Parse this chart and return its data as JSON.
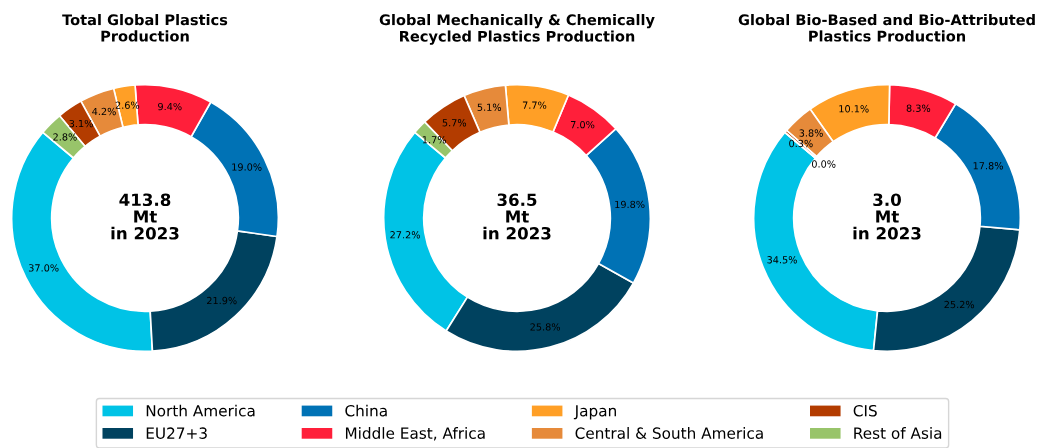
{
  "chart_data": [
    {
      "type": "donut",
      "title": "Total Global Plastics\nProduction",
      "categories": [
        "North America",
        "EU27+3",
        "China",
        "Middle East, Africa",
        "Japan",
        "Central & South America",
        "CIS",
        "Rest of Asia"
      ],
      "values": [
        37.0,
        21.9,
        19.0,
        9.4,
        2.6,
        4.2,
        3.1,
        2.8
      ],
      "value_labels": [
        "37.0%",
        "21.9%",
        "19.0%",
        "9.4%",
        "2.6%",
        "4.2%",
        "3.1%",
        "2.8%"
      ],
      "colors": [
        "#00c3e6",
        "#00425f",
        "#0072b5",
        "#ff1f3a",
        "#ff9f26",
        "#e68a3a",
        "#b33c00",
        "#98c46a"
      ],
      "annotations": [
        "413.8\nMt\nin 2023"
      ],
      "legend": "bottom"
    },
    {
      "type": "donut",
      "title": "Global Mechanically & Chemically\nRecycled Plastics Production",
      "categories": [
        null,
        null,
        null,
        null,
        null,
        null,
        null,
        null
      ],
      "values": [
        27.2,
        25.8,
        19.8,
        7.0,
        7.7,
        5.1,
        5.7,
        1.7
      ],
      "value_labels": [
        "27.2%",
        "25.8%",
        "19.8%",
        "7.0%",
        "7.7%",
        "5.1%",
        "5.7%",
        "1.7%"
      ],
      "colors": [
        "#00c3e6",
        "#00425f",
        "#0072b5",
        "#ff1f3a",
        "#ff9f26",
        "#e68a3a",
        "#b33c00",
        "#98c46a"
      ],
      "annotations": [
        "36.5\nMt\nin 2023"
      ]
    },
    {
      "type": "donut",
      "title": "Global Bio-Based and Bio-Attributed\nPlastics Production",
      "categories": [
        null,
        null,
        null,
        null,
        null,
        null,
        null,
        null
      ],
      "values": [
        34.5,
        25.2,
        17.8,
        8.3,
        10.1,
        3.8,
        0.3,
        0.0
      ],
      "value_labels": [
        "34.5%",
        "25.2%",
        "17.8%",
        "8.3%",
        "10.1%",
        "3.8%",
        "0.3%",
        "0.0%"
      ],
      "colors": [
        "#00c3e6",
        "#00425f",
        "#0072b5",
        "#ff1f3a",
        "#ff9f26",
        "#e68a3a",
        "#b33c00",
        "#98c46a"
      ],
      "annotations": [
        "3.0\nMt\nin 2023"
      ]
    }
  ]
}
